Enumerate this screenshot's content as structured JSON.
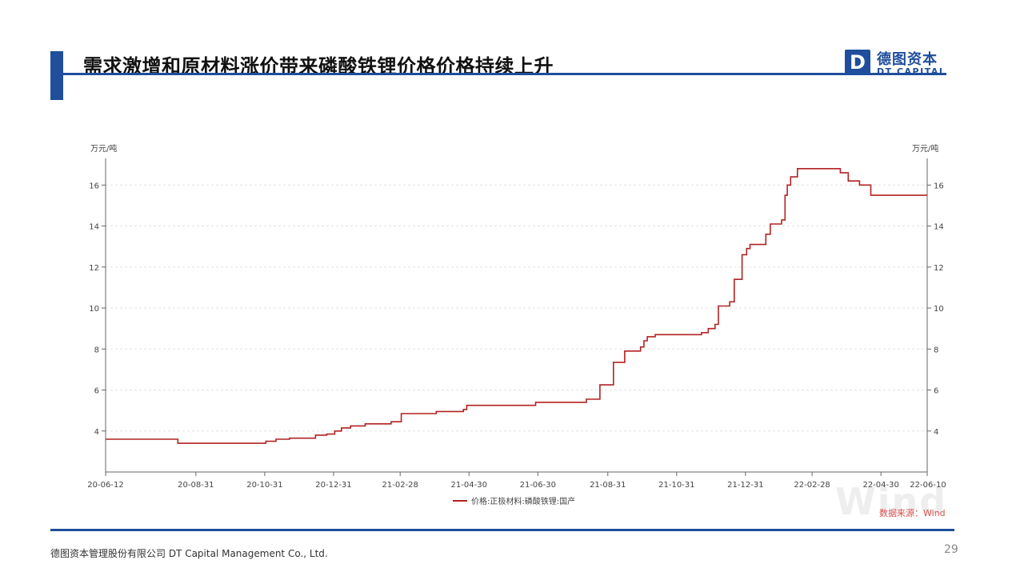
{
  "header": {
    "title": "需求激增和原材料涨价带来磷酸铁锂价格价格持续上升",
    "logo_mark": "D",
    "logo_cn": "德图资本",
    "logo_en": "DT CAPITAL"
  },
  "colors": {
    "brand": "#1f4e9c",
    "series": "#b22222",
    "source_text": "#d9534f"
  },
  "chart_data": {
    "type": "line",
    "title": "",
    "ylabel_left": "万元/吨",
    "ylabel_right": "万元/吨",
    "x_ticks": [
      "20-06-12",
      "20-08-31",
      "20-10-31",
      "20-12-31",
      "21-02-28",
      "21-04-30",
      "21-06-30",
      "21-08-31",
      "21-10-31",
      "21-12-31",
      "22-02-28",
      "22-04-30",
      "22-06-10"
    ],
    "y_ticks": [
      4,
      6,
      8,
      10,
      12,
      14,
      16
    ],
    "ylim": [
      2.0,
      17.3
    ],
    "grid": true,
    "legend_position": "bottom",
    "series": [
      {
        "name": "价格:正极材料:磷酸铁锂:国产",
        "step": true,
        "points": [
          [
            "2020-06-12",
            3.6
          ],
          [
            "2020-08-15",
            3.4
          ],
          [
            "2020-10-25",
            3.4
          ],
          [
            "2020-11-01",
            3.5
          ],
          [
            "2020-11-10",
            3.6
          ],
          [
            "2020-11-22",
            3.65
          ],
          [
            "2020-12-15",
            3.8
          ],
          [
            "2020-12-25",
            3.85
          ],
          [
            "2021-01-01",
            4.0
          ],
          [
            "2021-01-07",
            4.15
          ],
          [
            "2021-01-15",
            4.25
          ],
          [
            "2021-01-28",
            4.35
          ],
          [
            "2021-02-20",
            4.45
          ],
          [
            "2021-03-01",
            4.85
          ],
          [
            "2021-04-01",
            4.95
          ],
          [
            "2021-04-25",
            5.05
          ],
          [
            "2021-04-28",
            5.25
          ],
          [
            "2021-06-05",
            5.25
          ],
          [
            "2021-06-28",
            5.4
          ],
          [
            "2021-08-10",
            5.4
          ],
          [
            "2021-08-12",
            5.55
          ],
          [
            "2021-08-24",
            6.25
          ],
          [
            "2021-09-05",
            7.35
          ],
          [
            "2021-09-15",
            7.9
          ],
          [
            "2021-09-29",
            8.1
          ],
          [
            "2021-10-02",
            8.4
          ],
          [
            "2021-10-05",
            8.6
          ],
          [
            "2021-10-12",
            8.7
          ],
          [
            "2021-11-15",
            8.7
          ],
          [
            "2021-11-22",
            8.8
          ],
          [
            "2021-11-28",
            9.0
          ],
          [
            "2021-12-04",
            9.2
          ],
          [
            "2021-12-07",
            10.1
          ],
          [
            "2021-12-17",
            10.3
          ],
          [
            "2021-12-21",
            11.4
          ],
          [
            "2021-12-28",
            12.6
          ],
          [
            "2022-01-01",
            12.9
          ],
          [
            "2022-01-04",
            13.1
          ],
          [
            "2022-01-18",
            13.6
          ],
          [
            "2022-01-22",
            14.1
          ],
          [
            "2022-02-01",
            14.3
          ],
          [
            "2022-02-04",
            15.5
          ],
          [
            "2022-02-06",
            16.0
          ],
          [
            "2022-02-09",
            16.4
          ],
          [
            "2022-02-15",
            16.8
          ],
          [
            "2022-03-20",
            16.8
          ],
          [
            "2022-03-25",
            16.6
          ],
          [
            "2022-04-01",
            16.2
          ],
          [
            "2022-04-11",
            16.0
          ],
          [
            "2022-04-21",
            15.5
          ],
          [
            "2022-06-10",
            15.5
          ]
        ]
      }
    ]
  },
  "source": "数据来源：Wind",
  "watermark": "Wind",
  "footer": {
    "company": "德图资本管理股份有限公司  DT Capital  Management  Co., Ltd.",
    "page_number": "29"
  }
}
